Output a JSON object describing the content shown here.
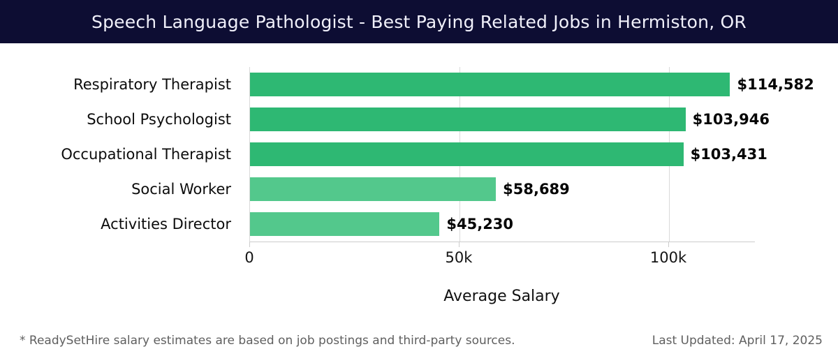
{
  "header": {
    "title": "Speech Language Pathologist - Best Paying Related Jobs in Hermiston, OR"
  },
  "chart_data": {
    "type": "bar",
    "orientation": "horizontal",
    "title": "Speech Language Pathologist - Best Paying Related Jobs in Hermiston, OR",
    "categories": [
      "Respiratory Therapist",
      "School Psychologist",
      "Occupational Therapist",
      "Social Worker",
      "Activities Director"
    ],
    "values": [
      114582,
      103946,
      103431,
      58689,
      45230
    ],
    "value_labels": [
      "$114,582",
      "$103,946",
      "$103,431",
      "$58,689",
      "$45,230"
    ],
    "bar_colors": [
      "#2eb873",
      "#2eb873",
      "#2eb873",
      "#53c88c",
      "#53c88c"
    ],
    "xlabel": "Average Salary",
    "ylabel": "",
    "x_ticks": [
      {
        "value": 0,
        "label": "0"
      },
      {
        "value": 50000,
        "label": "50k"
      },
      {
        "value": 100000,
        "label": "100k"
      }
    ],
    "xlim": [
      0,
      120500
    ],
    "grid": "vertical-gridlines-at-ticks",
    "legend": "none"
  },
  "footer": {
    "note": "* ReadySetHire salary estimates are based on job postings and third-party sources.",
    "last_updated": "Last Updated: April 17, 2025"
  },
  "colors": {
    "header_bg": "#0d0d33",
    "header_text": "#f0f0fa",
    "bar_green_dark": "#2eb873",
    "bar_green_light": "#53c88c",
    "gridline": "#d9d9d9",
    "axis_line": "#cccccc",
    "footer_text": "#5f5f5f"
  }
}
